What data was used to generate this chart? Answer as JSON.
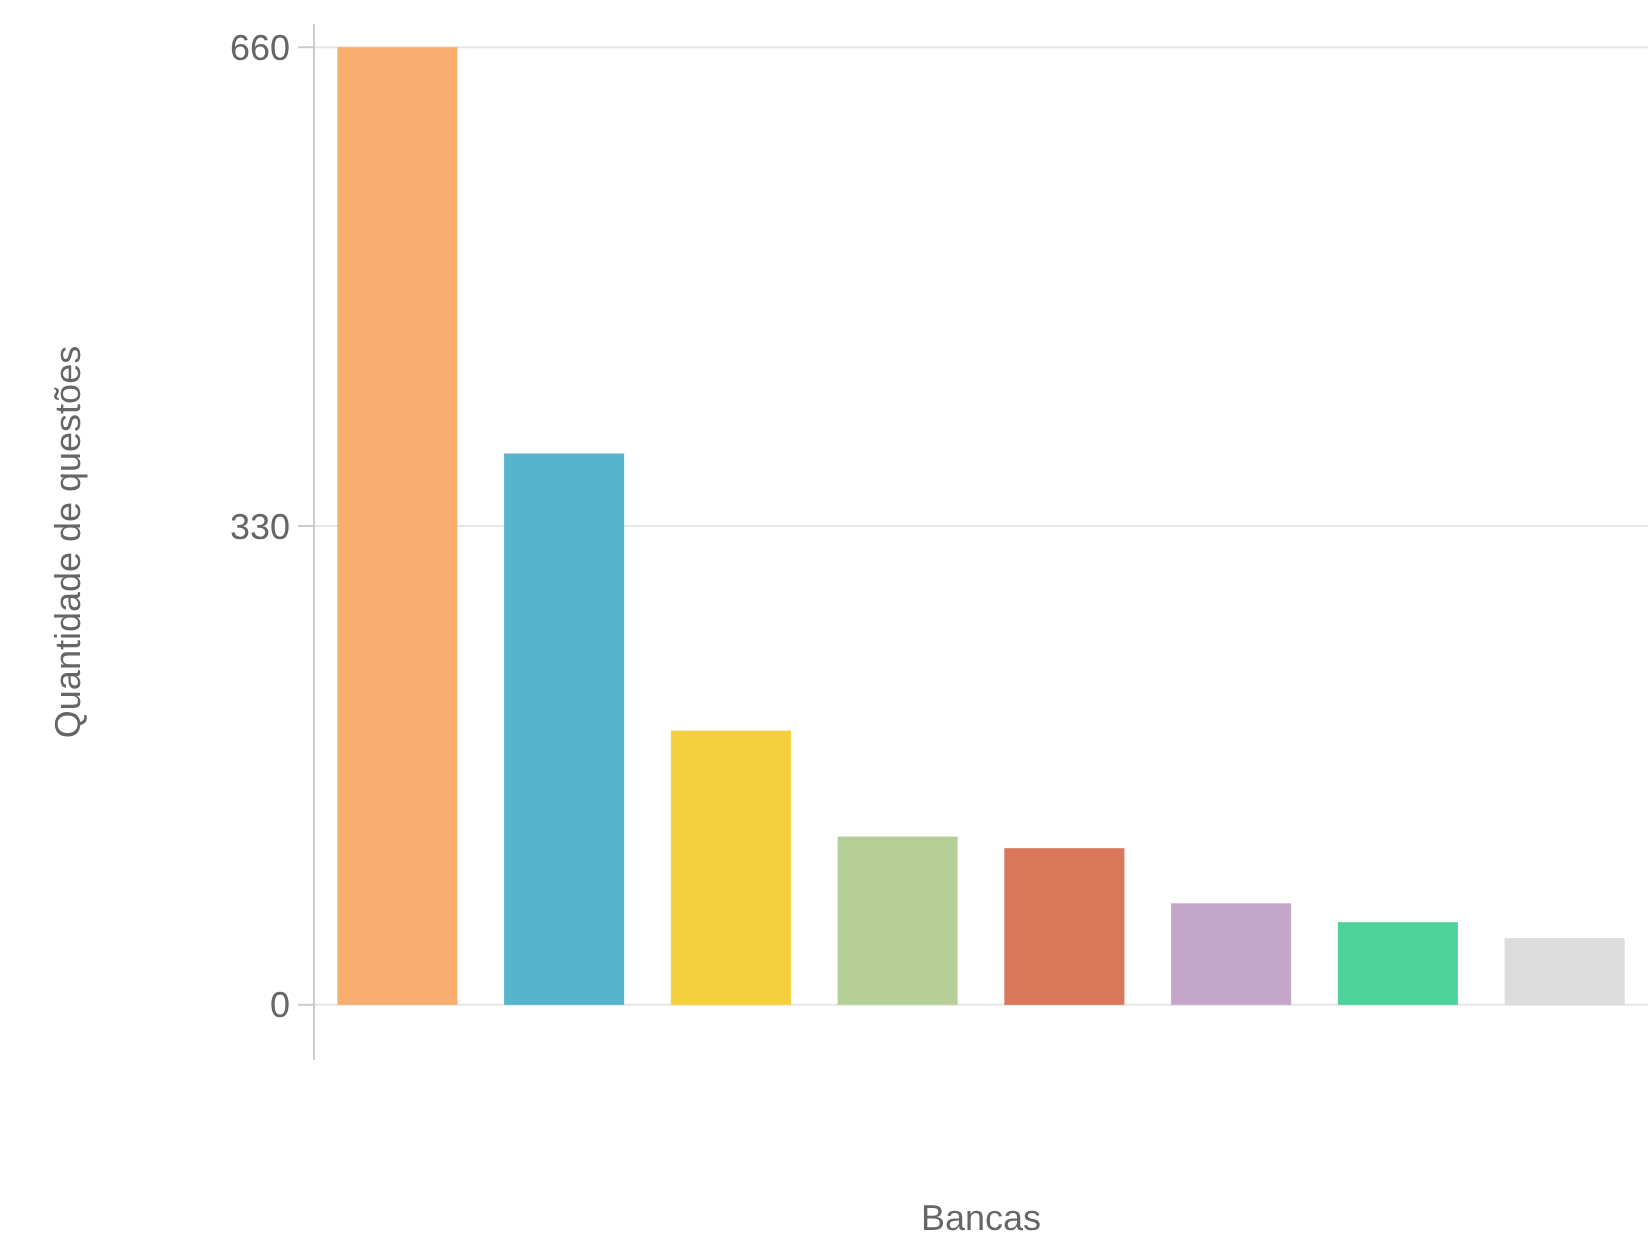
{
  "chart_data": {
    "type": "bar",
    "xlabel": "Bancas",
    "ylabel": "Quantidade de questões",
    "categories": [
      null,
      null,
      null,
      null,
      null,
      null,
      null,
      null
    ],
    "values": [
      660,
      380,
      189,
      116,
      108,
      70,
      57,
      46
    ],
    "colors": [
      "#f9ad6f",
      "#56b4cc",
      "#f4d03f",
      "#b5cf97",
      "#d9775a",
      "#c3a6c9",
      "#4fd29a",
      "#dcdcdc"
    ],
    "ylim": [
      -38,
      676
    ],
    "yticks": [
      0,
      330,
      660
    ],
    "grid": "y"
  }
}
